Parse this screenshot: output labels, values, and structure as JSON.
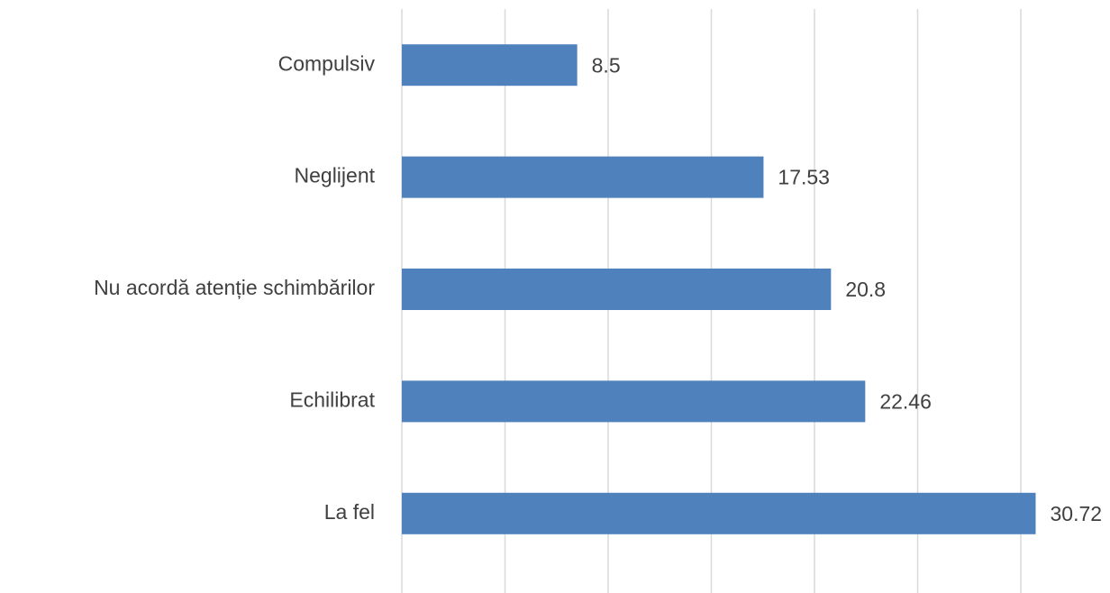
{
  "chart_data": {
    "type": "hbar",
    "categories": [
      "Compulsiv",
      "Neglijent",
      "Nu acordă atenție schimbărilor",
      "Echilibrat",
      "La fel"
    ],
    "values": [
      8.5,
      17.53,
      20.8,
      22.46,
      30.72
    ],
    "color": "#4f81bd",
    "xlim": [
      0,
      30
    ],
    "xticks": [
      0,
      5,
      10,
      15,
      20,
      25,
      30
    ],
    "grid": true
  }
}
